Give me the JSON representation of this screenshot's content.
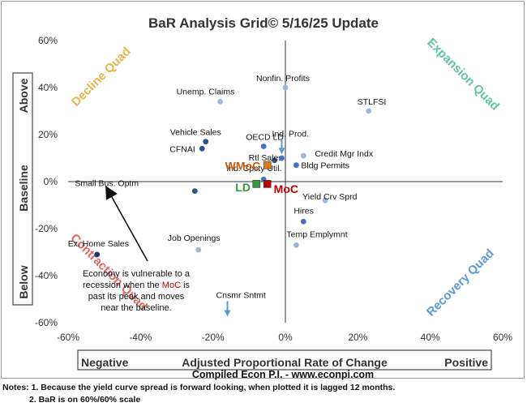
{
  "chart_data": {
    "type": "scatter",
    "title": "BaR Analysis Grid© 5/16/25 Update",
    "x_range": [
      -60,
      60
    ],
    "y_range": [
      -60,
      60
    ],
    "x_ticks": [
      "-60%",
      "-40%",
      "-20%",
      "0%",
      "20%",
      "40%",
      "60%"
    ],
    "y_ticks": [
      "60%",
      "40%",
      "20%",
      "0%",
      "-20%",
      "-40%",
      "-60%"
    ],
    "xlabel": {
      "left": "Negative",
      "center": "Adjusted Proportional Rate of Change",
      "right": "Positive"
    },
    "ylabel": {
      "top": "Above",
      "middle": "Baseline",
      "bottom": "Below"
    },
    "source": "Compiled Econ P.I. - www.econpi.com",
    "quadrant_labels": {
      "top_left": "Decline Quad",
      "top_right": "Expansion Quad",
      "bottom_left": "Contraction Quad",
      "bottom_right": "Recovery Quad"
    },
    "points": [
      {
        "name": "Nonfin. Profits",
        "x": 0,
        "y": 40,
        "color": "#9eb6d8"
      },
      {
        "name": "Unemp. Claims",
        "x": -18,
        "y": 34,
        "color": "#9eb6d8"
      },
      {
        "name": "STLFSI",
        "x": 23,
        "y": 30,
        "color": "#9eb6d8"
      },
      {
        "name": "Vehicle Sales",
        "x": -22,
        "y": 17,
        "color": "#2e5395"
      },
      {
        "name": "CFNAI",
        "x": -23,
        "y": 14,
        "color": "#2e5395"
      },
      {
        "name": "OECD LD",
        "x": -6,
        "y": 15,
        "color": "#4472c4"
      },
      {
        "name": "Credit Mgr Indx",
        "x": 5,
        "y": 11,
        "color": "#9eb6d8"
      },
      {
        "name": "Rtl Sales",
        "x": -3,
        "y": 9,
        "color": "#2e5395"
      },
      {
        "name": "",
        "x": -1,
        "y": 10,
        "color": "#4472c4"
      },
      {
        "name": "Bldg Permits",
        "x": 3,
        "y": 7,
        "color": "#4472c4"
      },
      {
        "name": "Small Bus. Optm",
        "x": -25,
        "y": -4,
        "color": "#2e5395"
      },
      {
        "name": "Ind. Cpcty Util.",
        "x": -6,
        "y": 1,
        "color": "#4472c4"
      },
      {
        "name": "Yield Crv Sprd",
        "x": 11,
        "y": -8,
        "color": "#9eb6d8"
      },
      {
        "name": "Hires",
        "x": 5,
        "y": -17,
        "color": "#4472c4"
      },
      {
        "name": "Temp Emplymnt",
        "x": 3,
        "y": -27,
        "color": "#9eb6d8"
      },
      {
        "name": "Job Openings",
        "x": -24,
        "y": -29,
        "color": "#9eb6d8"
      },
      {
        "name": "Ex. Home Sales",
        "x": -52,
        "y": -31,
        "color": "#1f3864"
      }
    ],
    "markers": [
      {
        "name": "WMoC",
        "x": -5,
        "y": 7,
        "color": "#e07b1a",
        "text_color": "#c55a11"
      },
      {
        "name": "LD",
        "x": -8,
        "y": -1,
        "color": "#2e9a3c",
        "text_color": "#2e9a3c"
      },
      {
        "name": "MoC",
        "x": -5,
        "y": -1,
        "color": "#c00000",
        "text_color": "#c00000"
      }
    ],
    "off_chart": [
      {
        "name": "Ind. Prod.",
        "x": -1,
        "y": 14,
        "direction": "down"
      },
      {
        "name": "Cnsmr Sntmt",
        "x": -16,
        "y": -55,
        "direction": "down"
      }
    ],
    "annotation": {
      "lines": [
        "Economy is vulnerable to a",
        "recession when the MoC is",
        "past its peak and moves",
        "near the baseline."
      ],
      "highlight": "MoC",
      "highlight_color": "#c00000"
    }
  },
  "notes": {
    "line1": "Notes: 1. Because the yield curve spread is forward looking, when plotted it is lagged 12 months.",
    "line2": "2. BaR is on 60%/60% scale"
  }
}
